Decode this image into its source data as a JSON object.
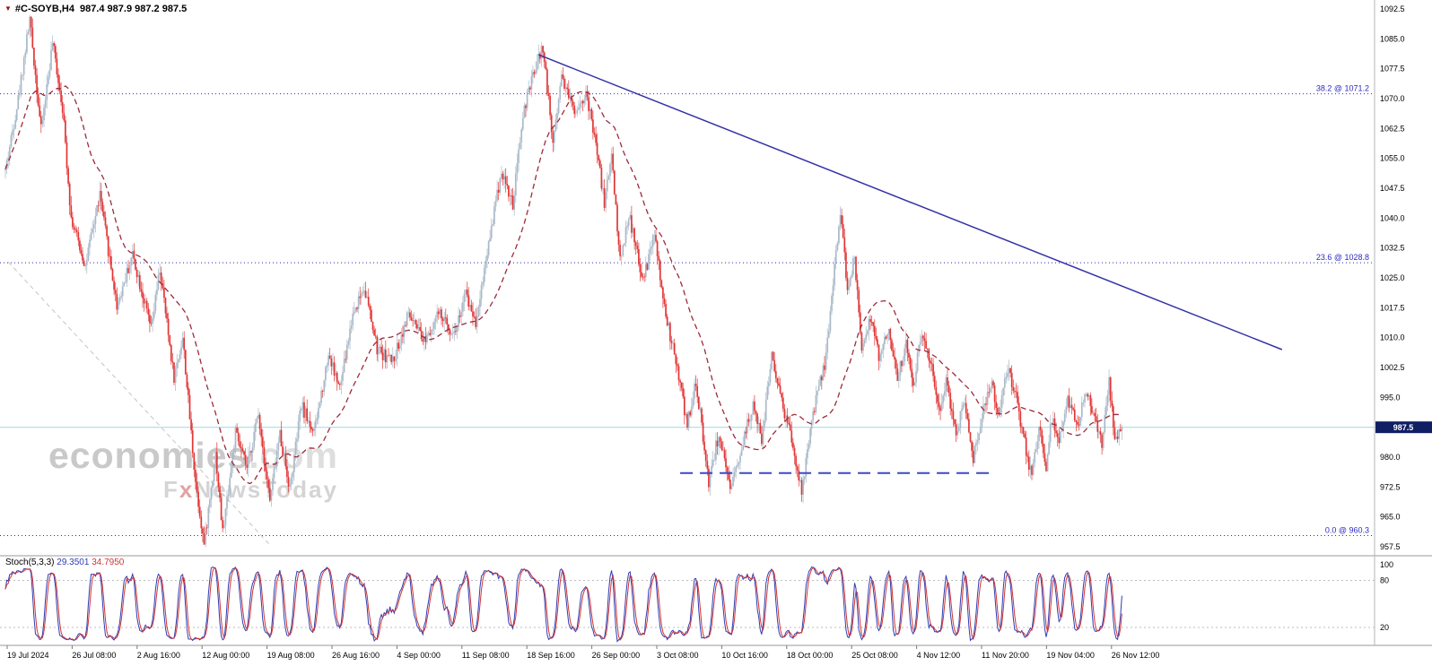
{
  "header": {
    "symbol": "#C-SOYB,H4",
    "ohlc_text": "987.4 987.9 987.2 987.5"
  },
  "icons": {
    "collapse_triangle": "▼"
  },
  "watermark": {
    "line1_a": "economies",
    "line1_b": ".com",
    "line2_a": "F",
    "line2_b": "x",
    "line2_c": "NewsToday"
  },
  "indicator": {
    "name": "Stoch(5,3,3)",
    "value_k": "29.3501",
    "value_d": "34.7950",
    "ticks": [
      "100",
      "80",
      "20"
    ],
    "levels": [
      80,
      20
    ]
  },
  "price_axis": {
    "max": 1092.5,
    "min": 957.5,
    "step": 7.5,
    "current_price": "987.5",
    "ticks": [
      "1092.5",
      "1085.0",
      "1077.5",
      "1070.0",
      "1062.5",
      "1055.0",
      "1047.5",
      "1040.0",
      "1032.5",
      "1025.0",
      "1017.5",
      "1010.0",
      "1002.5",
      "995.0",
      "987.5",
      "980.0",
      "972.5",
      "965.0",
      "957.5"
    ]
  },
  "time_axis": {
    "labels": [
      "19 Jul 2024",
      "26 Jul 08:00",
      "2 Aug 16:00",
      "12 Aug 00:00",
      "19 Aug 08:00",
      "26 Aug 16:00",
      "4 Sep 00:00",
      "11 Sep 08:00",
      "18 Sep 16:00",
      "26 Sep 00:00",
      "3 Oct 08:00",
      "10 Oct 16:00",
      "18 Oct 00:00",
      "25 Oct 08:00",
      "4 Nov 12:00",
      "11 Nov 20:00",
      "19 Nov 04:00",
      "26 Nov 12:00"
    ]
  },
  "colors": {
    "up": "#a9b9c8",
    "down": "#e23535",
    "ma": "#9c2b3b",
    "trend": "#3333a6",
    "fib": "#2b2bc0",
    "support": "#3a49c6",
    "current_line": "#aadbe6",
    "tag_bg": "#101f64",
    "stoch_k": "#2e3db4",
    "stoch_d": "#d23434"
  },
  "chart_data": {
    "type": "candlestick",
    "symbol": "#C-SOYB",
    "timeframe": "H4",
    "title": "#C-SOYB,H4 Soybeans 4-hour chart",
    "candle_count": 782,
    "last_close": 987.5,
    "current_ohlc": {
      "open": 987.4,
      "high": 987.9,
      "low": 987.2,
      "close": 987.5
    },
    "price_range": [
      957.5,
      1092.5
    ],
    "x_range": [
      "19 Jul 2024",
      "26 Nov 12:00"
    ],
    "grid": false,
    "swings": [
      [
        0,
        1052
      ],
      [
        9,
        1070
      ],
      [
        17,
        1090
      ],
      [
        25,
        1062
      ],
      [
        33,
        1084
      ],
      [
        40,
        1068
      ],
      [
        46,
        1040
      ],
      [
        56,
        1028
      ],
      [
        66,
        1046
      ],
      [
        78,
        1018
      ],
      [
        89,
        1031
      ],
      [
        102,
        1012
      ],
      [
        108,
        1027
      ],
      [
        118,
        1000
      ],
      [
        124,
        1010
      ],
      [
        133,
        974
      ],
      [
        139,
        958
      ],
      [
        147,
        981
      ],
      [
        152,
        961
      ],
      [
        161,
        986
      ],
      [
        169,
        977
      ],
      [
        177,
        991
      ],
      [
        185,
        969
      ],
      [
        192,
        986
      ],
      [
        199,
        972
      ],
      [
        207,
        993
      ],
      [
        216,
        986
      ],
      [
        226,
        1006
      ],
      [
        234,
        997
      ],
      [
        243,
        1016
      ],
      [
        251,
        1023
      ],
      [
        260,
        1007
      ],
      [
        271,
        1004
      ],
      [
        282,
        1016
      ],
      [
        292,
        1009
      ],
      [
        303,
        1016
      ],
      [
        314,
        1011
      ],
      [
        322,
        1021
      ],
      [
        329,
        1014
      ],
      [
        339,
        1036
      ],
      [
        347,
        1052
      ],
      [
        355,
        1043
      ],
      [
        362,
        1066
      ],
      [
        370,
        1077
      ],
      [
        376,
        1083
      ],
      [
        383,
        1059
      ],
      [
        389,
        1076
      ],
      [
        398,
        1067
      ],
      [
        406,
        1071
      ],
      [
        412,
        1061
      ],
      [
        419,
        1044
      ],
      [
        424,
        1056
      ],
      [
        430,
        1029
      ],
      [
        436,
        1041
      ],
      [
        446,
        1024
      ],
      [
        454,
        1036
      ],
      [
        461,
        1017
      ],
      [
        469,
        1004
      ],
      [
        477,
        988
      ],
      [
        483,
        999
      ],
      [
        492,
        974
      ],
      [
        499,
        986
      ],
      [
        507,
        971
      ],
      [
        515,
        983
      ],
      [
        523,
        993
      ],
      [
        529,
        984
      ],
      [
        536,
        1006
      ],
      [
        543,
        994
      ],
      [
        550,
        984
      ],
      [
        557,
        971
      ],
      [
        565,
        991
      ],
      [
        574,
        1005
      ],
      [
        580,
        1028
      ],
      [
        584,
        1042
      ],
      [
        589,
        1022
      ],
      [
        594,
        1030
      ],
      [
        599,
        1008
      ],
      [
        605,
        1015
      ],
      [
        611,
        1005
      ],
      [
        618,
        1012
      ],
      [
        624,
        1000
      ],
      [
        630,
        1008
      ],
      [
        635,
        998
      ],
      [
        641,
        1012
      ],
      [
        648,
        1002
      ],
      [
        654,
        992
      ],
      [
        658,
        1000
      ],
      [
        665,
        985
      ],
      [
        671,
        995
      ],
      [
        677,
        980
      ],
      [
        684,
        992
      ],
      [
        690,
        1000
      ],
      [
        694,
        990
      ],
      [
        701,
        1002
      ],
      [
        707,
        995
      ],
      [
        712,
        985
      ],
      [
        718,
        975
      ],
      [
        723,
        988
      ],
      [
        728,
        978
      ],
      [
        732,
        990
      ],
      [
        737,
        983
      ],
      [
        743,
        994
      ],
      [
        750,
        988
      ],
      [
        756,
        997
      ],
      [
        762,
        990
      ],
      [
        767,
        983
      ],
      [
        772,
        999
      ],
      [
        776,
        985
      ],
      [
        781,
        987.5
      ]
    ],
    "moving_average": {
      "type": "SMA",
      "period": 40,
      "style": "dashed"
    },
    "stochastic": {
      "period": 5,
      "k_smooth": 3,
      "d_smooth": 3,
      "current_k": 29.3501,
      "current_d": 34.795,
      "scale": [
        0,
        100
      ]
    },
    "annotations": {
      "fib_levels": [
        {
          "label": "38.2 @ 1071.2",
          "price": 1071.2
        },
        {
          "label": "23.6 @ 1028.8",
          "price": 1028.8
        },
        {
          "label": "0.0 @ 960.3",
          "price": 960.3
        }
      ],
      "trendline": {
        "i1": 373,
        "price1": 1081,
        "i2": 893,
        "price2": 1007
      },
      "support_line": {
        "price": 976,
        "i1": 472,
        "i2": 692
      },
      "fib_anchor_line": {
        "i1": 2,
        "price1": 1029,
        "i2": 186,
        "price2": 957.6
      }
    }
  }
}
